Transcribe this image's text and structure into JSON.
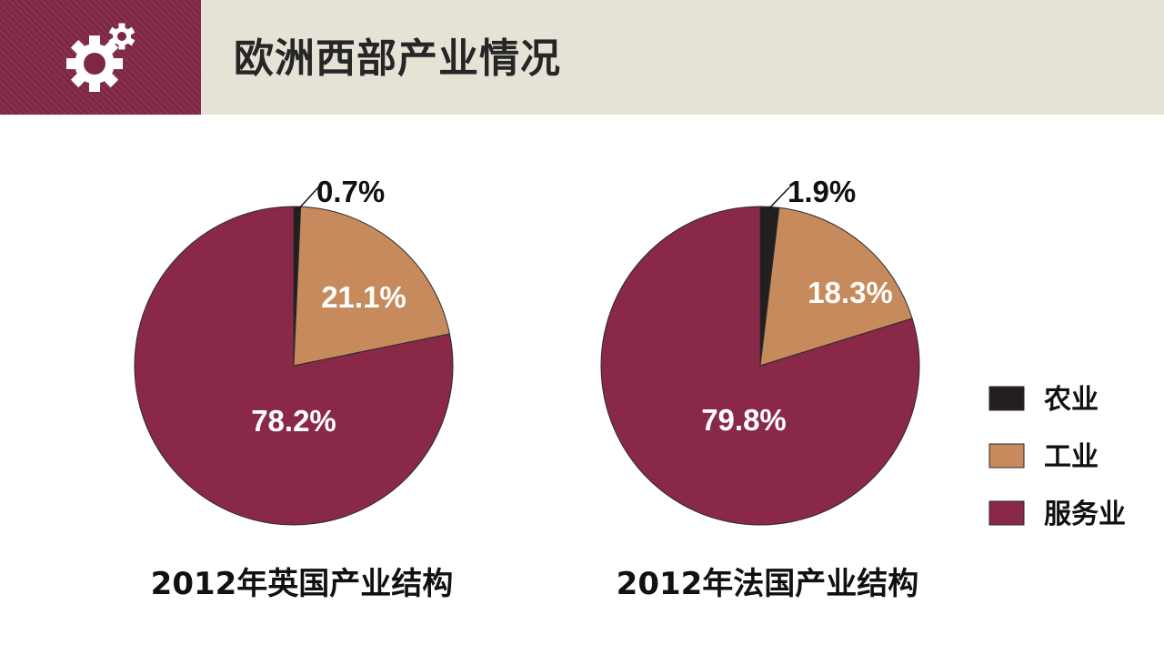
{
  "header": {
    "title": "欧洲西部产业情况",
    "icon": "gears-icon"
  },
  "colors": {
    "header_icon_bg": "#7e2646",
    "header_bar_bg": "#e7e2d6",
    "agriculture": "#231f20",
    "industry": "#c68a5c",
    "services": "#8a2848"
  },
  "chart_data": [
    {
      "type": "pie",
      "title": "2012年英国产业结构",
      "categories": [
        "农业",
        "工业",
        "服务业"
      ],
      "values": [
        0.7,
        21.1,
        78.2
      ],
      "labels": [
        "0.7%",
        "21.1%",
        "78.2%"
      ],
      "legend": "right"
    },
    {
      "type": "pie",
      "title": "2012年法国产业结构",
      "categories": [
        "农业",
        "工业",
        "服务业"
      ],
      "values": [
        1.9,
        18.3,
        79.8
      ],
      "labels": [
        "1.9%",
        "18.3%",
        "79.8%"
      ],
      "legend": "right"
    }
  ],
  "legend": {
    "items": [
      "农业",
      "工业",
      "服务业"
    ]
  }
}
